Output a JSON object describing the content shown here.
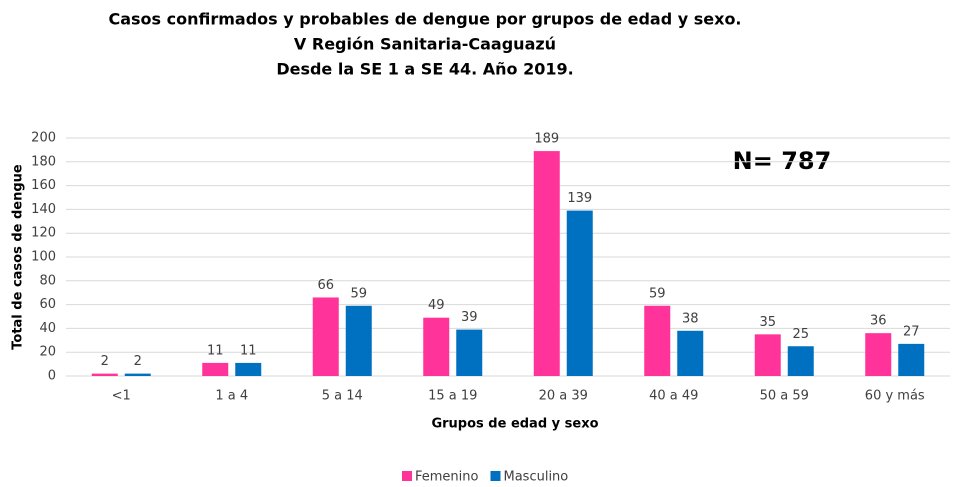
{
  "chart_data": {
    "type": "bar",
    "title": [
      "Casos confirmados y probables de dengue por grupos de edad y sexo.",
      "V Región Sanitaria-Caaguazú",
      "Desde la SE 1 a SE 44. Año 2019."
    ],
    "annotation": "N= 787",
    "y_label": "Total de casos de dengue",
    "x_label": "Grupos de edad y sexo",
    "categories": [
      "<1",
      "1 a 4",
      "5 a 14",
      "15 a 19",
      "20 a 39",
      "40 a 49",
      "50 a 59",
      "60 y más"
    ],
    "series": [
      {
        "name": "Femenino",
        "color": "#ff3399",
        "values": [
          2,
          11,
          66,
          49,
          189,
          59,
          35,
          36
        ]
      },
      {
        "name": "Masculino",
        "color": "#0070c0",
        "values": [
          2,
          11,
          59,
          39,
          139,
          38,
          25,
          27
        ]
      }
    ],
    "ylim": [
      0,
      200
    ],
    "yticks": [
      0,
      20,
      40,
      60,
      80,
      100,
      120,
      140,
      160,
      180,
      200
    ],
    "grid": true,
    "legend": "bottom"
  }
}
